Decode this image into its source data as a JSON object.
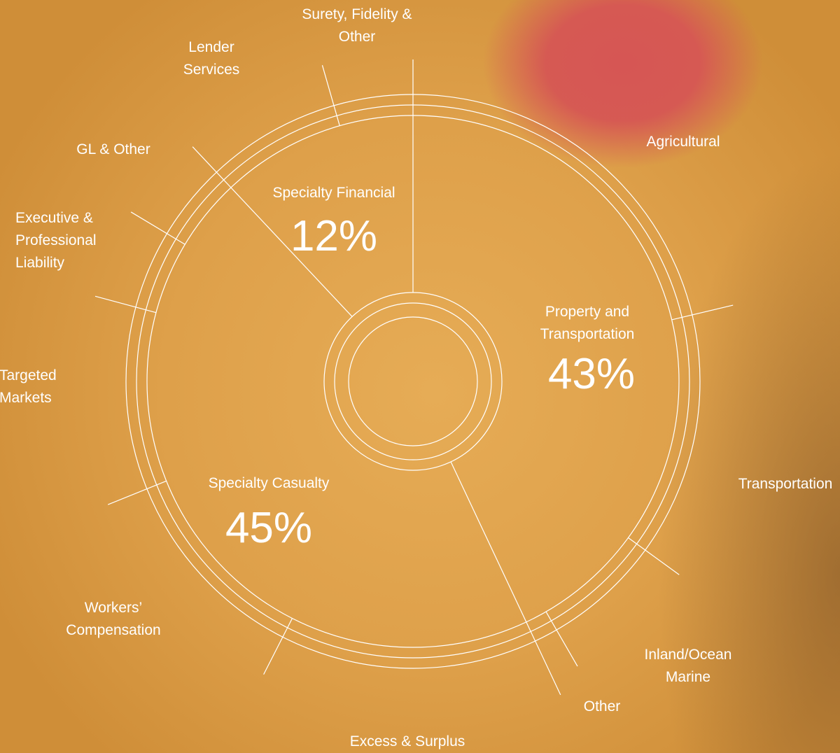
{
  "chart_data": {
    "type": "pie",
    "categories": [
      "Property and Transportation",
      "Specialty Casualty",
      "Specialty Financial"
    ],
    "values": [
      43,
      45,
      12
    ],
    "value_labels": [
      "43%",
      "45%",
      "12%"
    ],
    "segment_labels": [
      "Agricultural",
      "Transportation",
      "Inland/Ocean Marine",
      "Other",
      "Excess & Surplus",
      "Workers’ Compensation",
      "Targeted Markets",
      "Executive & Professional Liability",
      "GL & Other",
      "Lender Services",
      "Surety, Fidelity & Other"
    ],
    "color": "#ffffff"
  }
}
